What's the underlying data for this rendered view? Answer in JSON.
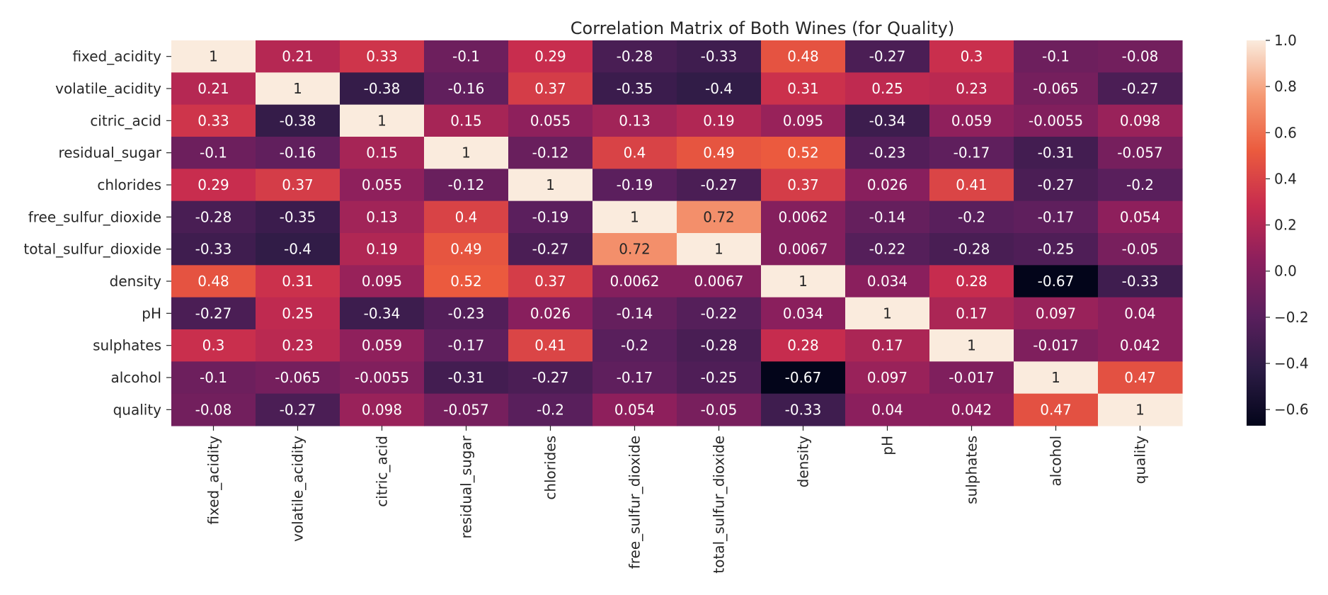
{
  "chart_data": {
    "type": "heatmap",
    "title": "Correlation Matrix of Both Wines (for Quality)",
    "xlabel": "",
    "ylabel": "",
    "rows": [
      "fixed_acidity",
      "volatile_acidity",
      "citric_acid",
      "residual_sugar",
      "chlorides",
      "free_sulfur_dioxide",
      "total_sulfur_dioxide",
      "density",
      "pH",
      "sulphates",
      "alcohol",
      "quality"
    ],
    "columns": [
      "fixed_acidity",
      "volatile_acidity",
      "citric_acid",
      "residual_sugar",
      "chlorides",
      "free_sulfur_dioxide",
      "total_sulfur_dioxide",
      "density",
      "pH",
      "sulphates",
      "alcohol",
      "quality"
    ],
    "values": [
      [
        1,
        0.21,
        0.33,
        -0.1,
        0.29,
        -0.28,
        -0.33,
        0.48,
        -0.27,
        0.3,
        -0.1,
        -0.08
      ],
      [
        0.21,
        1,
        -0.38,
        -0.16,
        0.37,
        -0.35,
        -0.4,
        0.31,
        0.25,
        0.23,
        -0.065,
        -0.27
      ],
      [
        0.33,
        -0.38,
        1,
        0.15,
        0.055,
        0.13,
        0.19,
        0.095,
        -0.34,
        0.059,
        -0.0055,
        0.098
      ],
      [
        -0.1,
        -0.16,
        0.15,
        1,
        -0.12,
        0.4,
        0.49,
        0.52,
        -0.23,
        -0.17,
        -0.31,
        -0.057
      ],
      [
        0.29,
        0.37,
        0.055,
        -0.12,
        1,
        -0.19,
        -0.27,
        0.37,
        0.026,
        0.41,
        -0.27,
        -0.2
      ],
      [
        -0.28,
        -0.35,
        0.13,
        0.4,
        -0.19,
        1,
        0.72,
        0.0062,
        -0.14,
        -0.2,
        -0.17,
        0.054
      ],
      [
        -0.33,
        -0.4,
        0.19,
        0.49,
        -0.27,
        0.72,
        1,
        0.0067,
        -0.22,
        -0.28,
        -0.25,
        -0.05
      ],
      [
        0.48,
        0.31,
        0.095,
        0.52,
        0.37,
        0.0062,
        0.0067,
        1,
        0.034,
        0.28,
        -0.67,
        -0.33
      ],
      [
        -0.27,
        0.25,
        -0.34,
        -0.23,
        0.026,
        -0.14,
        -0.22,
        0.034,
        1,
        0.17,
        0.097,
        0.04
      ],
      [
        0.3,
        0.23,
        0.059,
        -0.17,
        0.41,
        -0.2,
        -0.28,
        0.28,
        0.17,
        1,
        -0.017,
        0.042
      ],
      [
        -0.1,
        -0.065,
        -0.0055,
        -0.31,
        -0.27,
        -0.17,
        -0.25,
        -0.67,
        0.097,
        -0.017,
        1,
        0.47
      ],
      [
        -0.08,
        -0.27,
        0.098,
        -0.057,
        -0.2,
        0.054,
        -0.05,
        -0.33,
        0.04,
        0.042,
        0.47,
        1
      ]
    ],
    "value_labels": [
      [
        "1",
        "0.21",
        "0.33",
        "-0.1",
        "0.29",
        "-0.28",
        "-0.33",
        "0.48",
        "-0.27",
        "0.3",
        "-0.1",
        "-0.08"
      ],
      [
        "0.21",
        "1",
        "-0.38",
        "-0.16",
        "0.37",
        "-0.35",
        "-0.4",
        "0.31",
        "0.25",
        "0.23",
        "-0.065",
        "-0.27"
      ],
      [
        "0.33",
        "-0.38",
        "1",
        "0.15",
        "0.055",
        "0.13",
        "0.19",
        "0.095",
        "-0.34",
        "0.059",
        "-0.0055",
        "0.098"
      ],
      [
        "-0.1",
        "-0.16",
        "0.15",
        "1",
        "-0.12",
        "0.4",
        "0.49",
        "0.52",
        "-0.23",
        "-0.17",
        "-0.31",
        "-0.057"
      ],
      [
        "0.29",
        "0.37",
        "0.055",
        "-0.12",
        "1",
        "-0.19",
        "-0.27",
        "0.37",
        "0.026",
        "0.41",
        "-0.27",
        "-0.2"
      ],
      [
        "-0.28",
        "-0.35",
        "0.13",
        "0.4",
        "-0.19",
        "1",
        "0.72",
        "0.0062",
        "-0.14",
        "-0.2",
        "-0.17",
        "0.054"
      ],
      [
        "-0.33",
        "-0.4",
        "0.19",
        "0.49",
        "-0.27",
        "0.72",
        "1",
        "0.0067",
        "-0.22",
        "-0.28",
        "-0.25",
        "-0.05"
      ],
      [
        "0.48",
        "0.31",
        "0.095",
        "0.52",
        "0.37",
        "0.0062",
        "0.0067",
        "1",
        "0.034",
        "0.28",
        "-0.67",
        "-0.33"
      ],
      [
        "-0.27",
        "0.25",
        "-0.34",
        "-0.23",
        "0.026",
        "-0.14",
        "-0.22",
        "0.034",
        "1",
        "0.17",
        "0.097",
        "0.04"
      ],
      [
        "0.3",
        "0.23",
        "0.059",
        "-0.17",
        "0.41",
        "-0.2",
        "-0.28",
        "0.28",
        "0.17",
        "1",
        "-0.017",
        "0.042"
      ],
      [
        "-0.1",
        "-0.065",
        "-0.0055",
        "-0.31",
        "-0.27",
        "-0.17",
        "-0.25",
        "-0.67",
        "0.097",
        "-0.017",
        "1",
        "0.47"
      ],
      [
        "-0.08",
        "-0.27",
        "0.098",
        "-0.057",
        "-0.2",
        "0.054",
        "-0.05",
        "-0.33",
        "0.04",
        "0.042",
        "0.47",
        "1"
      ]
    ],
    "colorscale": {
      "name": "rocket",
      "vmin": -0.67,
      "vmax": 1.0,
      "stops": [
        "#03051a",
        "#2b1b44",
        "#5a1f5d",
        "#8c1f5d",
        "#c72c4e",
        "#eb5b3e",
        "#f59a74",
        "#faebdd"
      ]
    },
    "colorbar": {
      "ticks": [
        1.0,
        0.8,
        0.6,
        0.4,
        0.2,
        0.0,
        -0.2,
        -0.4,
        -0.6
      ],
      "tick_labels": [
        "1.0",
        "0.8",
        "0.6",
        "0.4",
        "0.2",
        "0.0",
        "−0.2",
        "−0.4",
        "−0.6"
      ]
    },
    "grid": false,
    "legend": "right"
  }
}
